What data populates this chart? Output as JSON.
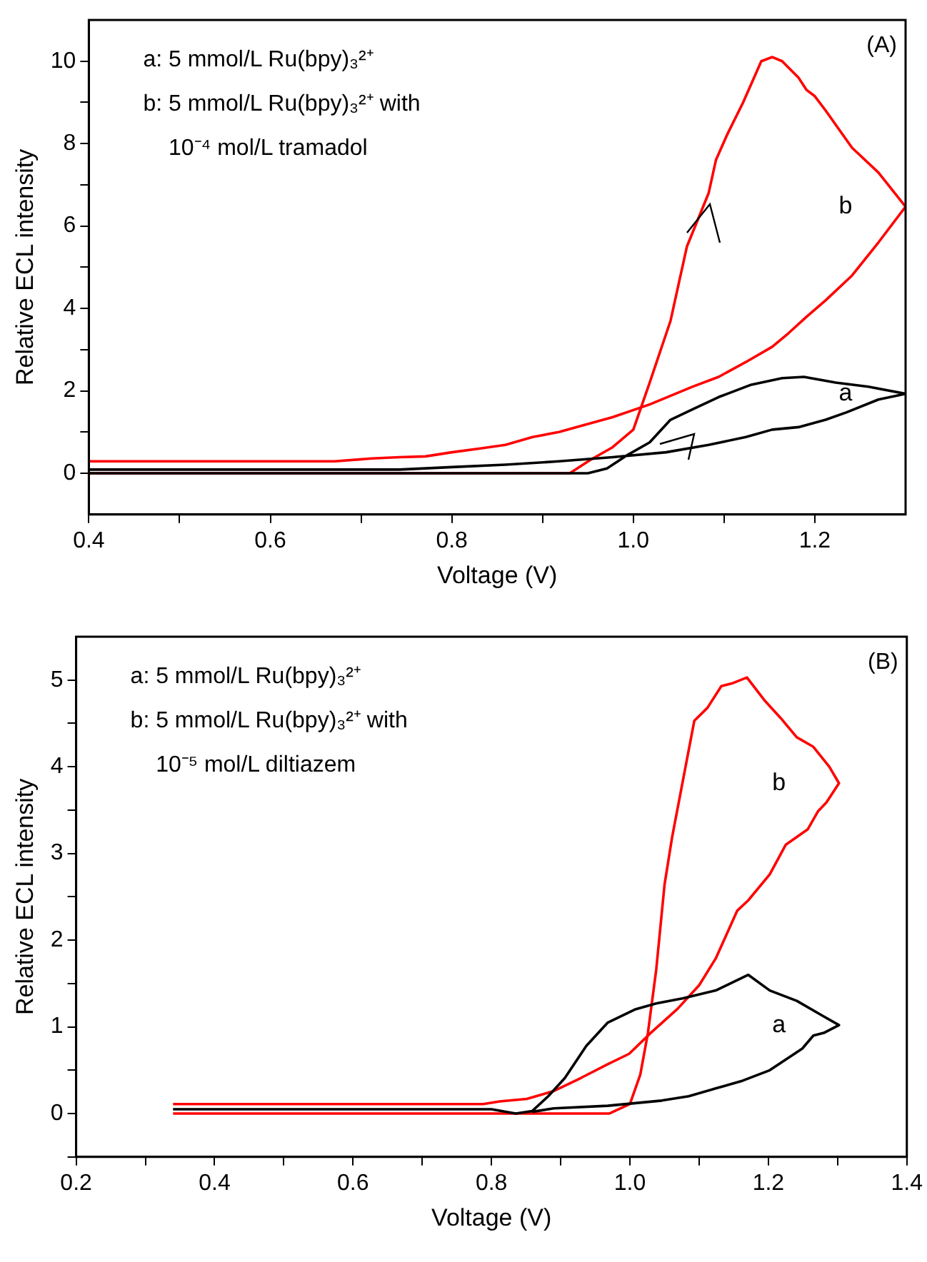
{
  "chart_data": [
    {
      "type": "line",
      "title": "(A)",
      "xlabel": "Voltage (V)",
      "ylabel": "Relative ECL intensity",
      "xlim": [
        0.4,
        1.3
      ],
      "ylim": [
        -1,
        11
      ],
      "xticks": [
        0.4,
        {
          "value": 0.5,
          "label": null
        },
        0.6,
        {
          "value": 0.7,
          "label": null
        },
        0.8,
        {
          "value": 0.9,
          "label": null
        },
        {
          "value": 1.0,
          "label": "1.0"
        },
        {
          "value": 1.1,
          "label": null
        },
        1.2
      ],
      "yticks": [
        0,
        {
          "value": 1,
          "label": null
        },
        2,
        {
          "value": 3,
          "label": null
        },
        4,
        {
          "value": 5,
          "label": null
        },
        6,
        {
          "value": 7,
          "label": null
        },
        8,
        {
          "value": 9,
          "label": null
        },
        10
      ],
      "grid": false,
      "legend": false,
      "marker": "none",
      "line_style": "solid",
      "annotations": [
        "a: 5 mmol/L Ru(bpy)₃²⁺",
        "b: 5 mmol/L Ru(bpy)₃²⁺ with",
        "    10⁻⁴ mol/L tramadol"
      ],
      "series": [
        {
          "name": "a",
          "color": "#000000",
          "x": [
            0.4,
            0.95,
            0.971,
            0.994,
            1.018,
            1.041,
            1.065,
            1.094,
            1.13,
            1.164,
            1.188,
            1.223,
            1.259,
            1.3,
            1.27,
            1.235,
            1.212,
            1.182,
            1.153,
            1.124,
            1.083,
            1.036,
            0.977,
            0.918,
            0.859,
            0.8,
            0.742,
            0.4
          ],
          "values": [
            0,
            0,
            0.12,
            0.45,
            0.75,
            1.3,
            1.55,
            1.85,
            2.15,
            2.31,
            2.34,
            2.2,
            2.1,
            1.93,
            1.79,
            1.48,
            1.3,
            1.12,
            1.06,
            0.88,
            0.69,
            0.51,
            0.39,
            0.29,
            0.21,
            0.15,
            0.09,
            0.09
          ]
        },
        {
          "name": "b",
          "color": "#ff0000",
          "x": [
            0.4,
            0.93,
            0.953,
            0.977,
            1.0,
            1.018,
            1.041,
            1.059,
            1.083,
            1.091,
            1.103,
            1.121,
            1.141,
            1.153,
            1.164,
            1.182,
            1.191,
            1.2,
            1.212,
            1.241,
            1.27,
            1.3,
            1.27,
            1.241,
            1.212,
            1.191,
            1.171,
            1.153,
            1.124,
            1.094,
            1.065,
            1.018,
            0.977,
            0.947,
            0.918,
            0.889,
            0.859,
            0.83,
            0.8,
            0.771,
            0.742,
            0.712,
            0.671,
            0.4
          ],
          "values": [
            0,
            0,
            0.33,
            0.63,
            1.06,
            2.2,
            3.7,
            5.5,
            6.8,
            7.6,
            8.2,
            9.0,
            10.0,
            10.1,
            10.0,
            9.6,
            9.3,
            9.15,
            8.8,
            7.9,
            7.3,
            6.47,
            5.6,
            4.8,
            4.2,
            3.8,
            3.4,
            3.07,
            2.7,
            2.34,
            2.1,
            1.67,
            1.36,
            1.18,
            1.0,
            0.88,
            0.69,
            0.6,
            0.51,
            0.41,
            0.39,
            0.36,
            0.29,
            0.29
          ]
        }
      ]
    },
    {
      "type": "line",
      "title": "(B)",
      "xlabel": "Voltage (V)",
      "ylabel": "Relative ECL intensity",
      "xlim": [
        0.2,
        1.4
      ],
      "ylim": [
        -0.5,
        5.5
      ],
      "xticks": [
        0.2,
        {
          "value": 0.3,
          "label": null
        },
        0.4,
        {
          "value": 0.5,
          "label": null
        },
        0.6,
        {
          "value": 0.7,
          "label": null
        },
        0.8,
        {
          "value": 0.9,
          "label": null
        },
        {
          "value": 1.0,
          "label": "1.0"
        },
        {
          "value": 1.1,
          "label": null
        },
        1.2,
        {
          "value": 1.3,
          "label": null
        },
        1.4
      ],
      "yticks": [
        {
          "value": -0.5,
          "label": null
        },
        0,
        {
          "value": 0.5,
          "label": null
        },
        1,
        {
          "value": 1.5,
          "label": null
        },
        2,
        {
          "value": 2.5,
          "label": null
        },
        3,
        {
          "value": 3.5,
          "label": null
        },
        4,
        {
          "value": 4.5,
          "label": null
        },
        5
      ],
      "grid": false,
      "legend": false,
      "marker": "none",
      "line_style": "solid",
      "annotations": [
        "a: 5 mmol/L Ru(bpy)₃²⁺",
        "b: 5 mmol/L Ru(bpy)₃²⁺ with",
        "    10⁻⁵ mol/L diltiazem"
      ],
      "series": [
        {
          "name": "a",
          "color": "#000000",
          "x": [
            0.34,
            0.8,
            0.835,
            0.859,
            0.882,
            0.906,
            0.937,
            0.968,
            1.007,
            1.038,
            1.077,
            1.124,
            1.171,
            1.202,
            1.241,
            1.28,
            1.302,
            1.28,
            1.265,
            1.249,
            1.202,
            1.163,
            1.124,
            1.085,
            1.046,
            0.968,
            0.89,
            0.859
          ],
          "values": [
            0.05,
            0.05,
            0.0,
            0.03,
            0.2,
            0.41,
            0.78,
            1.05,
            1.2,
            1.27,
            1.33,
            1.42,
            1.6,
            1.42,
            1.3,
            1.12,
            1.02,
            0.93,
            0.9,
            0.75,
            0.5,
            0.38,
            0.29,
            0.2,
            0.15,
            0.09,
            0.06,
            0.02
          ]
        },
        {
          "name": "b",
          "color": "#ff0000",
          "x": [
            0.34,
            0.97,
            1.0,
            1.015,
            1.026,
            1.038,
            1.05,
            1.061,
            1.077,
            1.093,
            1.112,
            1.132,
            1.147,
            1.169,
            1.194,
            1.218,
            1.241,
            1.265,
            1.288,
            1.302,
            1.284,
            1.272,
            1.257,
            1.225,
            1.202,
            1.171,
            1.155,
            1.124,
            1.1,
            1.069,
            1.03,
            0.999,
            0.968,
            0.929,
            0.89,
            0.851,
            0.812,
            0.788,
            0.34
          ],
          "values": [
            0,
            0,
            0.11,
            0.45,
            0.93,
            1.66,
            2.64,
            3.19,
            3.86,
            4.53,
            4.68,
            4.93,
            4.96,
            5.03,
            4.77,
            4.56,
            4.34,
            4.23,
            4.0,
            3.81,
            3.59,
            3.49,
            3.28,
            3.1,
            2.76,
            2.46,
            2.34,
            1.79,
            1.48,
            1.21,
            0.93,
            0.69,
            0.57,
            0.41,
            0.26,
            0.17,
            0.14,
            0.11,
            0.11
          ]
        }
      ]
    }
  ]
}
